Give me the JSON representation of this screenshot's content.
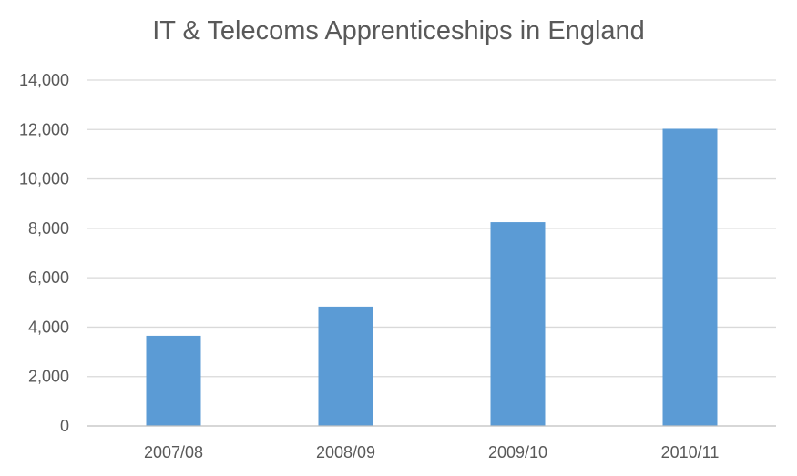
{
  "chart_data": {
    "type": "bar",
    "title": "IT & Telecoms Apprenticeships in England",
    "xlabel": "",
    "ylabel": "",
    "categories": [
      "2007/08",
      "2008/09",
      "2009/10",
      "2010/11"
    ],
    "values": [
      3650,
      4830,
      8250,
      12030
    ],
    "ylim": [
      0,
      14000
    ],
    "yticks": [
      0,
      2000,
      4000,
      6000,
      8000,
      10000,
      12000,
      14000
    ],
    "ytick_labels": [
      "0",
      "2,000",
      "4,000",
      "6,000",
      "8,000",
      "10,000",
      "12,000",
      "14,000"
    ],
    "grid": true,
    "legend": "none",
    "colors": {
      "bar": "#5b9bd5",
      "grid": "#d9d9d9",
      "axis": "#bfbfbf",
      "text": "#595959"
    }
  }
}
